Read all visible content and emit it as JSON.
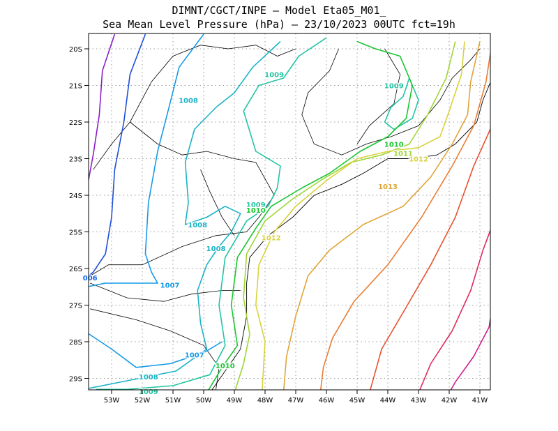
{
  "header": {
    "line1": "DIMNT/CGCT/INPE —  Model Eta05_M01_",
    "line2": "Sea Mean Level Pressure (hPa) — 23/10/2023 00UTC fct=19h"
  },
  "axes": {
    "x_ticks": [
      "53W",
      "52W",
      "51W",
      "50W",
      "49W",
      "48W",
      "47W",
      "46W",
      "45W",
      "44W",
      "43W",
      "42W",
      "41W"
    ],
    "y_ticks": [
      "20S",
      "21S",
      "22S",
      "23S",
      "24S",
      "25S",
      "26S",
      "27S",
      "28S",
      "29S"
    ]
  },
  "contour_labels": [
    {
      "text": "1009",
      "color": "#22c4a2",
      "lon": -47.7,
      "lat": -20.7
    },
    {
      "text": "1009",
      "color": "#22c4a2",
      "lon": -43.8,
      "lat": -21.0
    },
    {
      "text": "1008",
      "color": "#1ab3c6",
      "lon": -50.5,
      "lat": -21.4
    },
    {
      "text": "1010",
      "color": "#19c531",
      "lon": -43.8,
      "lat": -22.6
    },
    {
      "text": "1011",
      "color": "#9ed636",
      "lon": -43.5,
      "lat": -22.85
    },
    {
      "text": "1012",
      "color": "#d8d23c",
      "lon": -43.0,
      "lat": -23.0
    },
    {
      "text": "1013",
      "color": "#e0a437",
      "lon": -44.0,
      "lat": -23.75
    },
    {
      "text": "1009",
      "color": "#22c4a2",
      "lon": -48.3,
      "lat": -24.25
    },
    {
      "text": "1010",
      "color": "#19c531",
      "lon": -48.3,
      "lat": -24.4
    },
    {
      "text": "1008",
      "color": "#1ab3c6",
      "lon": -50.2,
      "lat": -24.8
    },
    {
      "text": "1012",
      "color": "#d8d23c",
      "lon": -47.8,
      "lat": -25.15
    },
    {
      "text": "1008",
      "color": "#1ab3c6",
      "lon": -49.6,
      "lat": -25.45
    },
    {
      "text": "006",
      "color": "#1565e6",
      "lon": -53.7,
      "lat": -26.25
    },
    {
      "text": "1007",
      "color": "#169ae8",
      "lon": -51.1,
      "lat": -26.45
    },
    {
      "text": "1007",
      "color": "#169ae8",
      "lon": -50.3,
      "lat": -28.35
    },
    {
      "text": "1010",
      "color": "#19c531",
      "lon": -49.3,
      "lat": -28.65
    },
    {
      "text": "1008",
      "color": "#1ab3c6",
      "lon": -51.8,
      "lat": -28.95
    },
    {
      "text": "1009",
      "color": "#22c4a2",
      "lon": -51.8,
      "lat": -29.35
    }
  ],
  "colors": {
    "p1005": "#8a1fc8",
    "p1006": "#1e4fd8",
    "p1007": "#169ae8",
    "p1008": "#1ab3c6",
    "p1009": "#22c4a2",
    "p1010": "#19c531",
    "p1011": "#9ed636",
    "p1012": "#d8d23c",
    "p1013": "#e0a437",
    "p1014": "#ea7d34",
    "p1015": "#e8512f",
    "p1016": "#e02c5d",
    "p1017": "#d01e8c"
  }
}
